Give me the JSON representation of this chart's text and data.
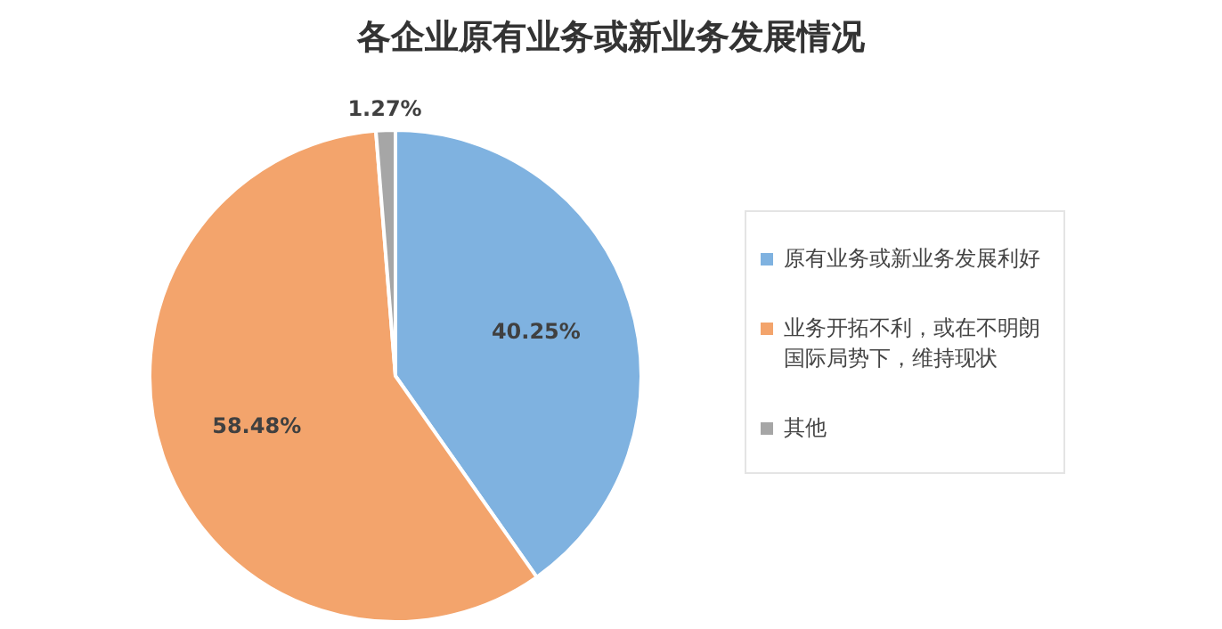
{
  "chart_data": {
    "type": "pie",
    "title": "各企业原有业务或新业务发展情况",
    "categories": [
      "原有业务或新业务发展利好",
      "业务开拓不利，或在不明朗国际局势下，维持现状",
      "其他"
    ],
    "values": [
      40.25,
      58.48,
      1.27
    ],
    "colors": [
      "#7fb2e0",
      "#f3a46c",
      "#a6a6a6"
    ],
    "value_labels": [
      "40.25%",
      "58.48%",
      "1.27%"
    ],
    "legend": "right"
  }
}
